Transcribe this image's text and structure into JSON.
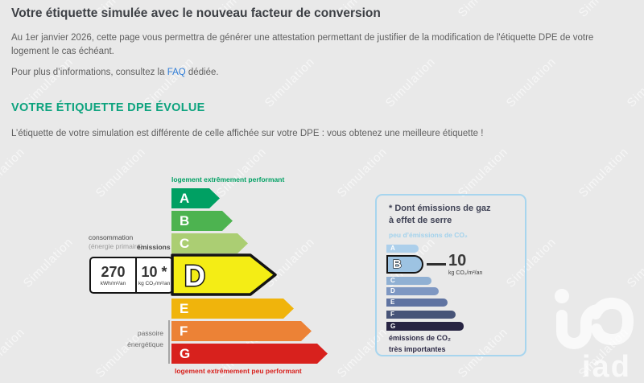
{
  "page": {
    "title": "Votre étiquette simulée avec le nouveau facteur de conversion",
    "intro": "Au 1er janvier 2026, cette page vous permettra de générer une attestation permettant de justifier de la modification de l'étiquette DPE de votre logement le cas échéant.",
    "faq_prefix": "Pour plus d’informations, consultez la ",
    "faq_link_label": "FAQ",
    "faq_suffix": " dédiée.",
    "section_heading": "VOTRE ÉTIQUETTE DPE ÉVOLUE",
    "section_text": "L’étiquette de votre simulation est différente de celle affichée sur votre DPE : vous obtenez une meilleure étiquette !",
    "watermark_text": "Simulation",
    "brand": "iad",
    "background_color": "#e9e9e9",
    "heading_color": "#0da37e",
    "link_color": "#2e7cd6"
  },
  "dpe": {
    "top_label": "logement extrêmement performant",
    "bottom_label": "logement extrêmement peu performant",
    "consumption_label": "consommation",
    "consumption_sublabel": "(énergie primaire)",
    "emissions_label": "émissions",
    "sieve_label_line1": "passoire",
    "sieve_label_line2": "énergétique",
    "energy_value": "270",
    "energy_unit": "kWh/m²/an",
    "co2_value": "10 *",
    "co2_unit": "kg CO₂/m²/an",
    "current_grade": "D",
    "grades": [
      "A",
      "B",
      "C",
      "D",
      "E",
      "F",
      "G"
    ],
    "colors": [
      "#00a063",
      "#4db350",
      "#abce73",
      "#f4ed15",
      "#f0b40c",
      "#ec8236",
      "#d8211d"
    ]
  },
  "ges": {
    "title_line1": "* Dont émissions de gaz",
    "title_line2": "à effet de serre",
    "low_emissions_label": "peu d’émissions de CO₂",
    "high_emissions_line1": "émissions de CO₂",
    "high_emissions_line2": "très importantes",
    "value": "10",
    "value_unit": "kg CO₂/m²/an",
    "current_grade": "B",
    "grades": [
      "A",
      "B",
      "C",
      "D",
      "E",
      "F",
      "G"
    ],
    "colors": [
      "#accfeb",
      "#9dc3e2",
      "#90b0d3",
      "#7e97c2",
      "#5f73a1",
      "#475478",
      "#272442"
    ],
    "border_color": "#a7d5ee"
  }
}
